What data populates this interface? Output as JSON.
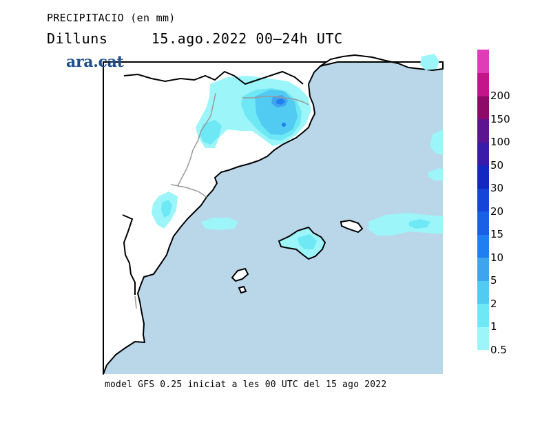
{
  "header": {
    "title_line1": "PRECIPITACIO (en mm)",
    "day_name": "Dilluns",
    "date_range": "15.ago.2022 00–24h UTC"
  },
  "brand": {
    "logo_text": "ara.cat",
    "color": "#1c4e8f"
  },
  "footer": {
    "model_text": "model GFS 0.25 iniciat a les 00 UTC del 15 ago 2022"
  },
  "legend": {
    "labels": [
      "0.5",
      "1",
      "2",
      "5",
      "10",
      "15",
      "20",
      "30",
      "50",
      "100",
      "150",
      "200"
    ],
    "colors": [
      "#9cf5f8",
      "#6ee8f5",
      "#52cbf2",
      "#3ea4ee",
      "#1f7ef0",
      "#1a60e6",
      "#1444d8",
      "#1228c0",
      "#3a1aa8",
      "#5c1490",
      "#8c0a68",
      "#c4148a",
      "#e03cb8"
    ]
  },
  "map": {
    "sea_color": "#bad7ea",
    "land_color": "#ffffff",
    "coast_color": "#000000",
    "border_color": "#999999"
  }
}
